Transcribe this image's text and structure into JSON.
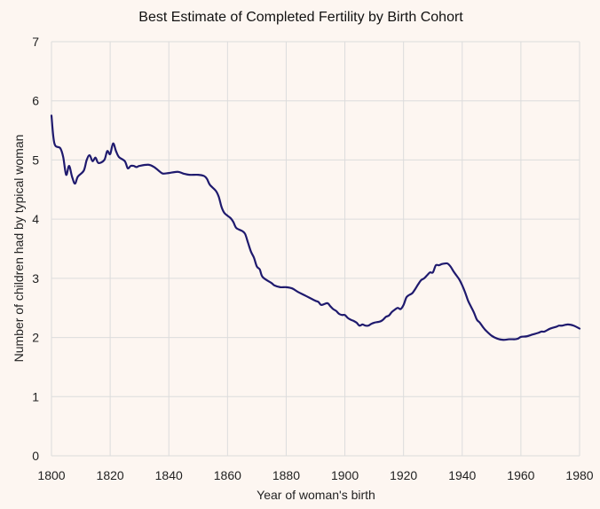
{
  "chart_data": {
    "type": "line",
    "title": "Best Estimate of Completed Fertility by Birth Cohort",
    "xlabel": "Year of woman's birth",
    "ylabel": "Number of children had by typical woman",
    "xlim": [
      1800,
      1980
    ],
    "ylim": [
      0,
      7
    ],
    "x_ticks": [
      1800,
      1820,
      1840,
      1860,
      1880,
      1900,
      1920,
      1940,
      1960,
      1980
    ],
    "y_ticks": [
      0,
      1,
      2,
      3,
      4,
      5,
      6,
      7
    ],
    "grid": "vertical and horizontal",
    "line_color": "#1f1a6e",
    "series": [
      {
        "x": [
          1800,
          1801,
          1803,
          1804,
          1805,
          1806,
          1807,
          1808,
          1809,
          1811,
          1812,
          1813,
          1814,
          1815,
          1816,
          1818,
          1819,
          1820,
          1821,
          1822,
          1823,
          1825,
          1826,
          1827,
          1828,
          1829,
          1830,
          1833,
          1835,
          1837,
          1838,
          1840,
          1843,
          1845,
          1847,
          1850,
          1852,
          1853,
          1854,
          1856,
          1857,
          1858,
          1859,
          1861,
          1862,
          1863,
          1865,
          1866,
          1867,
          1868,
          1869,
          1870,
          1871,
          1872,
          1875,
          1876,
          1878,
          1880,
          1882,
          1884,
          1886,
          1888,
          1890,
          1891,
          1892,
          1894,
          1895,
          1896,
          1897,
          1898,
          1899,
          1900,
          1901,
          1902,
          1903,
          1904,
          1905,
          1906,
          1907,
          1908,
          1909,
          1910,
          1912,
          1913,
          1914,
          1915,
          1916,
          1917,
          1918,
          1919,
          1920,
          1921,
          1922,
          1923,
          1924,
          1925,
          1926,
          1927,
          1928,
          1929,
          1930,
          1931,
          1932,
          1933,
          1934,
          1935,
          1936,
          1937,
          1938,
          1939,
          1940,
          1941,
          1942,
          1943,
          1944,
          1945,
          1946,
          1947,
          1948,
          1950,
          1952,
          1954,
          1956,
          1958,
          1959,
          1960,
          1962,
          1964,
          1966,
          1967,
          1968,
          1970,
          1972,
          1973,
          1974,
          1976,
          1978,
          1980
        ],
        "values": [
          5.75,
          5.28,
          5.2,
          5.05,
          4.75,
          4.9,
          4.72,
          4.6,
          4.72,
          4.82,
          5.0,
          5.08,
          4.98,
          5.04,
          4.95,
          5.0,
          5.15,
          5.1,
          5.28,
          5.15,
          5.05,
          4.98,
          4.86,
          4.9,
          4.9,
          4.88,
          4.9,
          4.92,
          4.88,
          4.8,
          4.77,
          4.78,
          4.8,
          4.77,
          4.75,
          4.75,
          4.73,
          4.68,
          4.58,
          4.48,
          4.38,
          4.2,
          4.1,
          4.02,
          3.95,
          3.85,
          3.8,
          3.75,
          3.6,
          3.45,
          3.35,
          3.2,
          3.15,
          3.02,
          2.92,
          2.88,
          2.85,
          2.85,
          2.83,
          2.77,
          2.72,
          2.67,
          2.62,
          2.6,
          2.55,
          2.58,
          2.53,
          2.48,
          2.45,
          2.4,
          2.38,
          2.38,
          2.33,
          2.3,
          2.28,
          2.25,
          2.2,
          2.22,
          2.2,
          2.2,
          2.23,
          2.25,
          2.27,
          2.3,
          2.35,
          2.37,
          2.43,
          2.47,
          2.5,
          2.48,
          2.55,
          2.68,
          2.72,
          2.75,
          2.82,
          2.9,
          2.97,
          3.0,
          3.05,
          3.1,
          3.1,
          3.22,
          3.22,
          3.24,
          3.25,
          3.25,
          3.2,
          3.12,
          3.05,
          2.98,
          2.88,
          2.76,
          2.62,
          2.52,
          2.42,
          2.3,
          2.25,
          2.18,
          2.12,
          2.03,
          1.98,
          1.96,
          1.97,
          1.97,
          1.98,
          2.01,
          2.02,
          2.05,
          2.08,
          2.1,
          2.1,
          2.15,
          2.18,
          2.2,
          2.2,
          2.22,
          2.2,
          2.15
        ]
      }
    ]
  }
}
